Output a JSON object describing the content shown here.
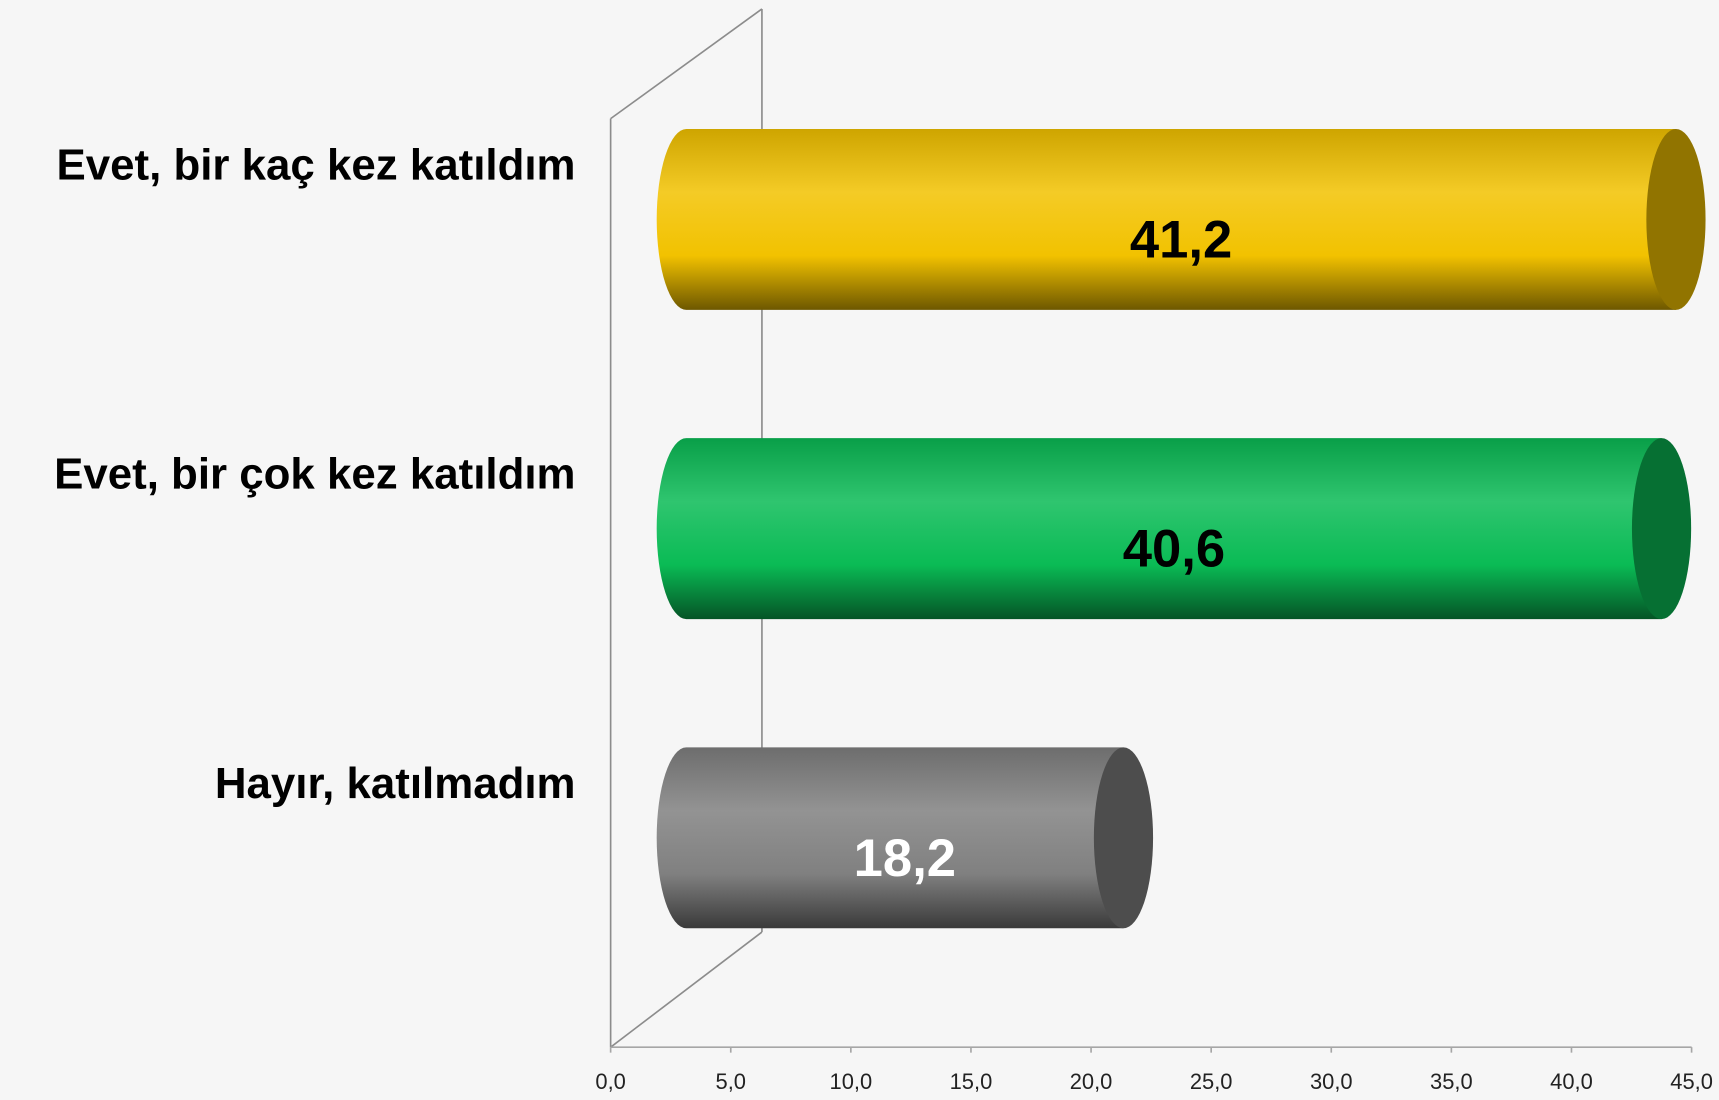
{
  "chart_data": {
    "type": "bar",
    "orientation": "horizontal",
    "style": "cylinder-3d",
    "categories": [
      "Evet, bir kaç kez katıldım",
      "Evet, bir çok kez katıldım",
      "Hayır, katılmadım"
    ],
    "values": [
      41.2,
      40.6,
      18.2
    ],
    "value_labels": [
      "41,2",
      "40,6",
      "18,2"
    ],
    "colors": [
      "#f2c200",
      "#0abb55",
      "#808080"
    ],
    "value_label_colors": [
      "#000000",
      "#000000",
      "#ffffff"
    ],
    "xlim": [
      0,
      45
    ],
    "xticks": [
      {
        "value": 0,
        "label": "0,0"
      },
      {
        "value": 5,
        "label": "5,0"
      },
      {
        "value": 10,
        "label": "10,0"
      },
      {
        "value": 15,
        "label": "15,0"
      },
      {
        "value": 20,
        "label": "20,0"
      },
      {
        "value": 25,
        "label": "25,0"
      },
      {
        "value": 30,
        "label": "30,0"
      },
      {
        "value": 35,
        "label": "35,0"
      },
      {
        "value": 40,
        "label": "40,0"
      },
      {
        "value": 45,
        "label": "45,0"
      }
    ]
  }
}
